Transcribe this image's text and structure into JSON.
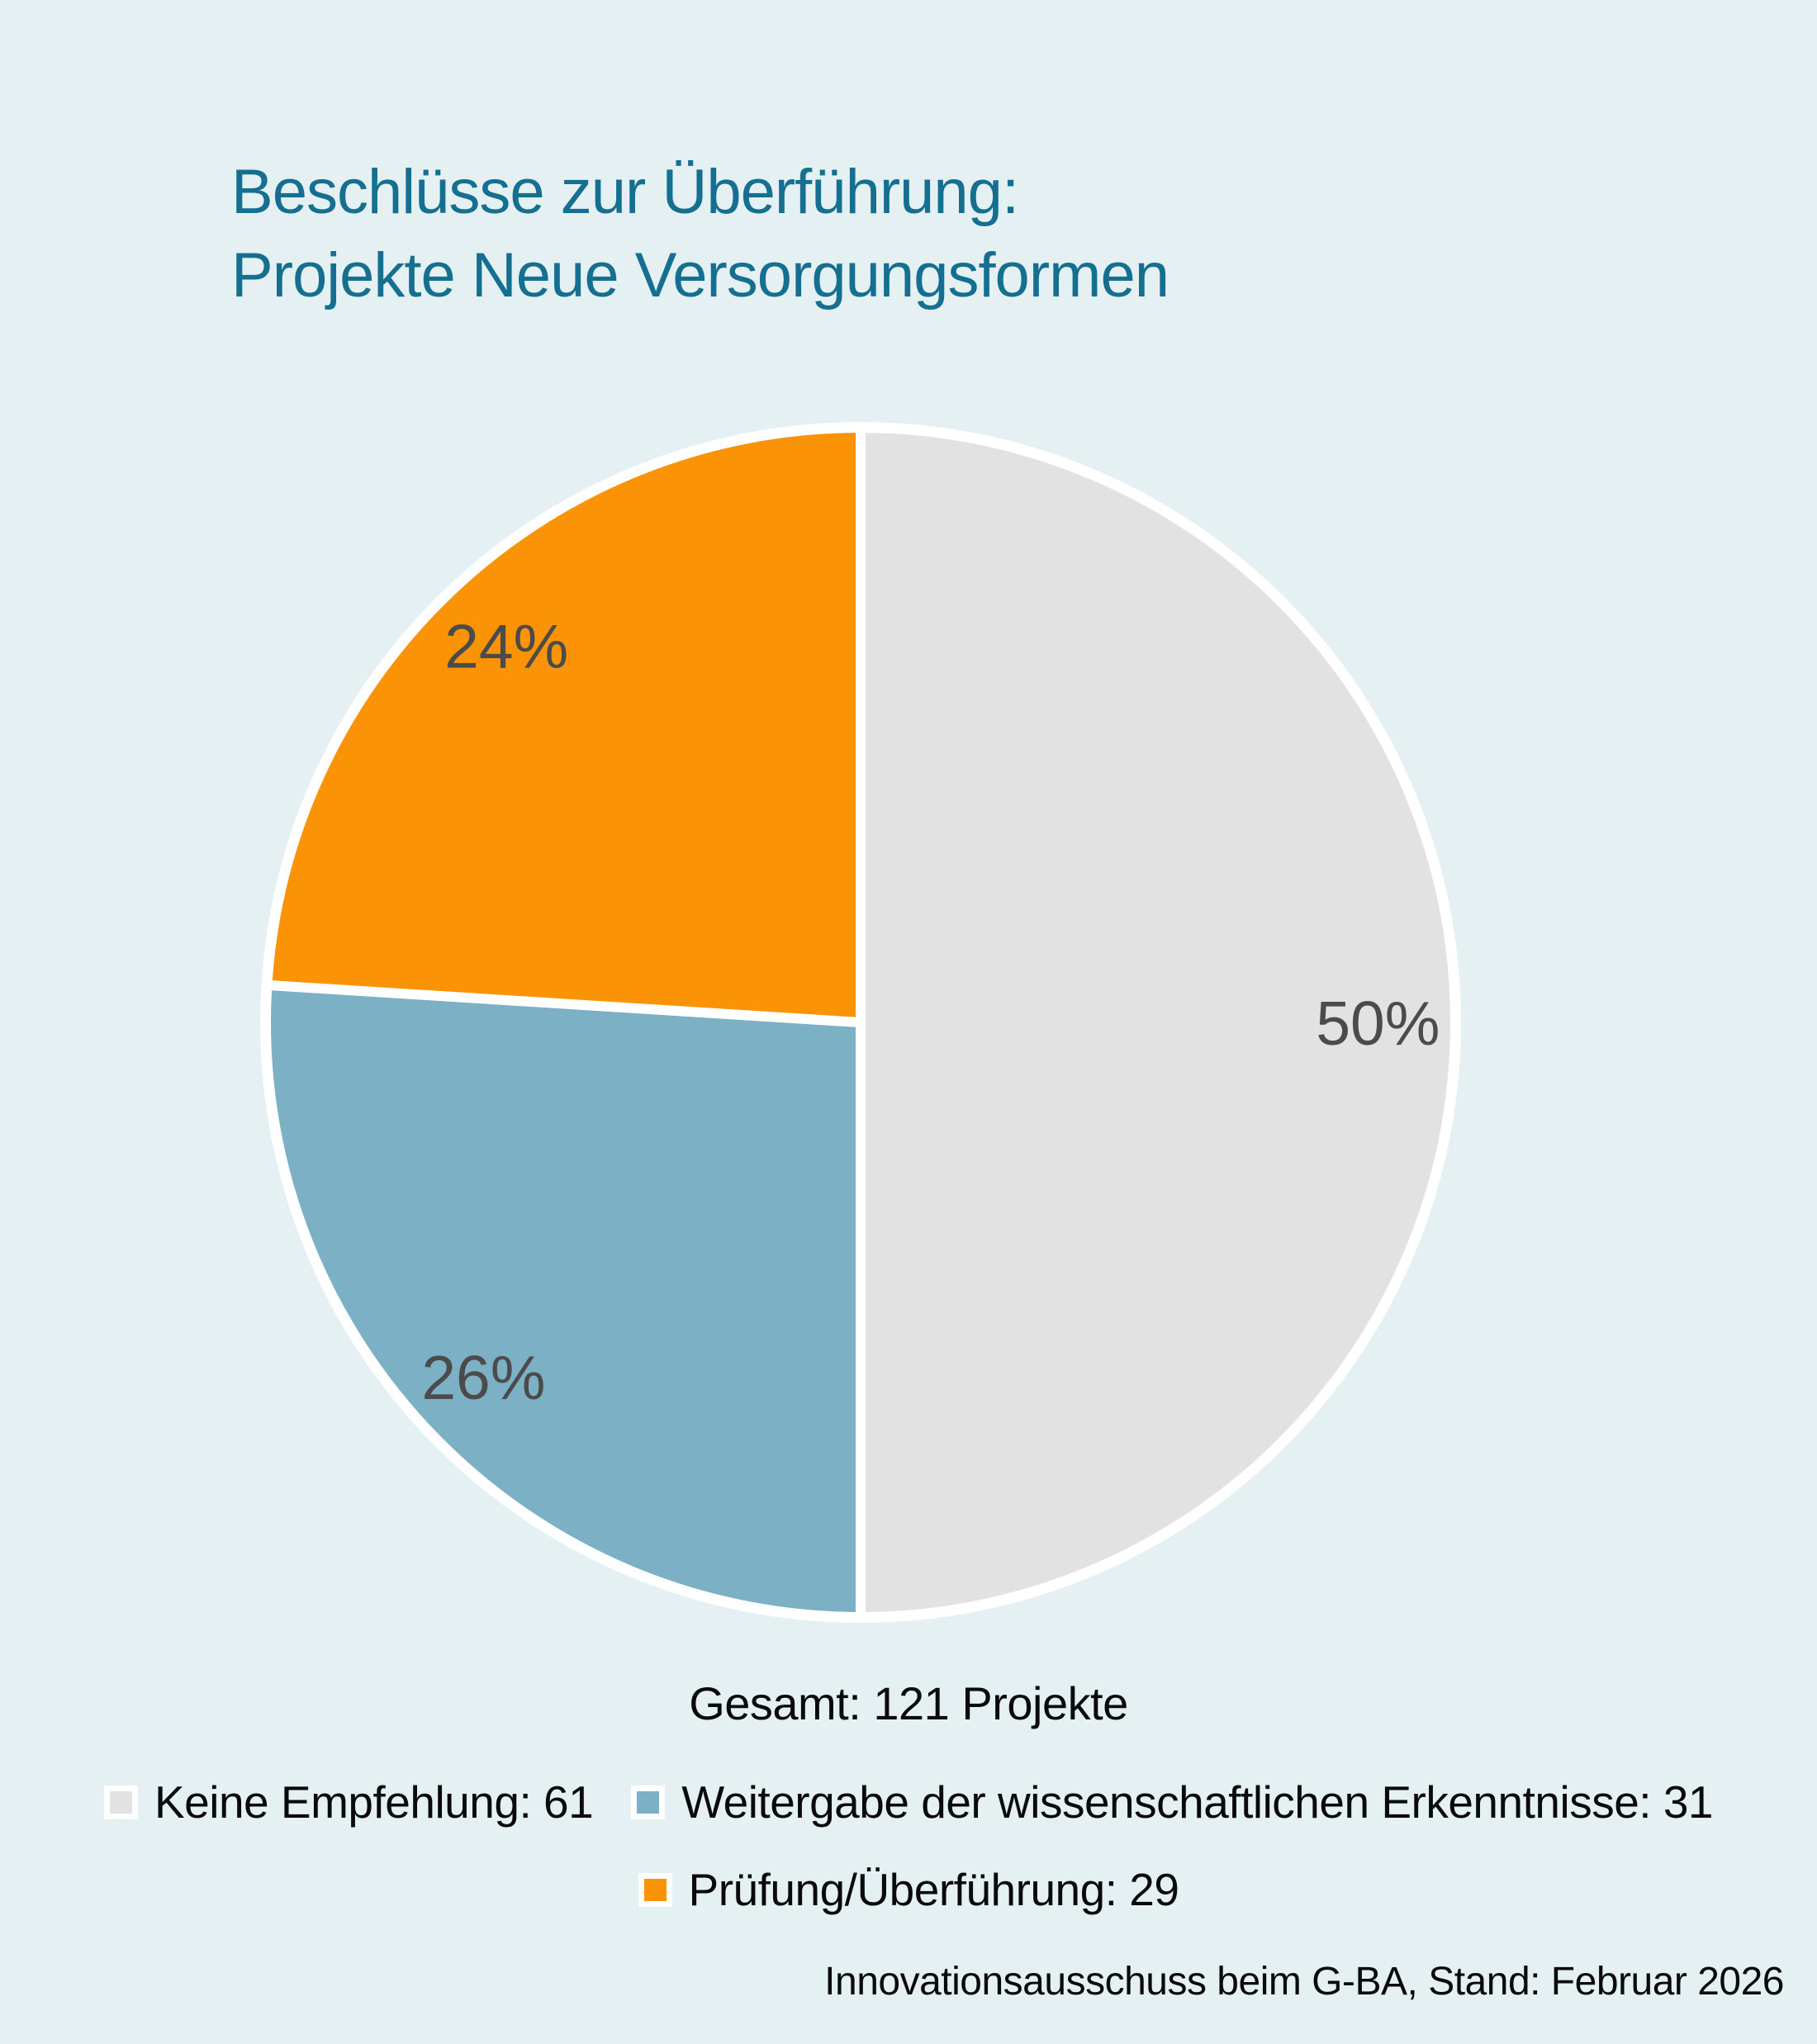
{
  "title": {
    "line1": "Beschlüsse zur Überführung:",
    "line2": "Projekte Neue Versorgungsformen"
  },
  "chart_data": {
    "type": "pie",
    "title": "Beschlüsse zur Überführung: Projekte Neue Versorgungsformen",
    "total": 121,
    "total_label": "Gesamt: 121 Projekte",
    "start_angle_deg": 0,
    "direction": "clockwise",
    "legend_position": "bottom",
    "slices": [
      {
        "label": "Keine Empfehlung",
        "value": 61,
        "pct": 50,
        "pct_label": "50%",
        "legend_label": "Keine Empfehlung: 61",
        "color": "#e3e2e2"
      },
      {
        "label": "Weitergabe der wissenschaftlichen Erkenntnisse",
        "value": 31,
        "pct": 26,
        "pct_label": "26%",
        "legend_label": "Weitergabe der wissenschaftlichen Erkenntnisse: 31",
        "color": "#7cb1c5"
      },
      {
        "label": "Prüfung/Überführung",
        "value": 29,
        "pct": 24,
        "pct_label": "24%",
        "legend_label": "Prüfung/Überführung: 29",
        "color": "#fb9306"
      }
    ]
  },
  "footer": {
    "source": "Innovationsausschuss beim G-BA, Stand: Februar 2026"
  },
  "colors": {
    "background": "#e5f0f3",
    "title": "#156f91",
    "slice_label": "#4b4b4b",
    "text": "#0a0a0a",
    "slice_stroke": "#ffffff"
  }
}
